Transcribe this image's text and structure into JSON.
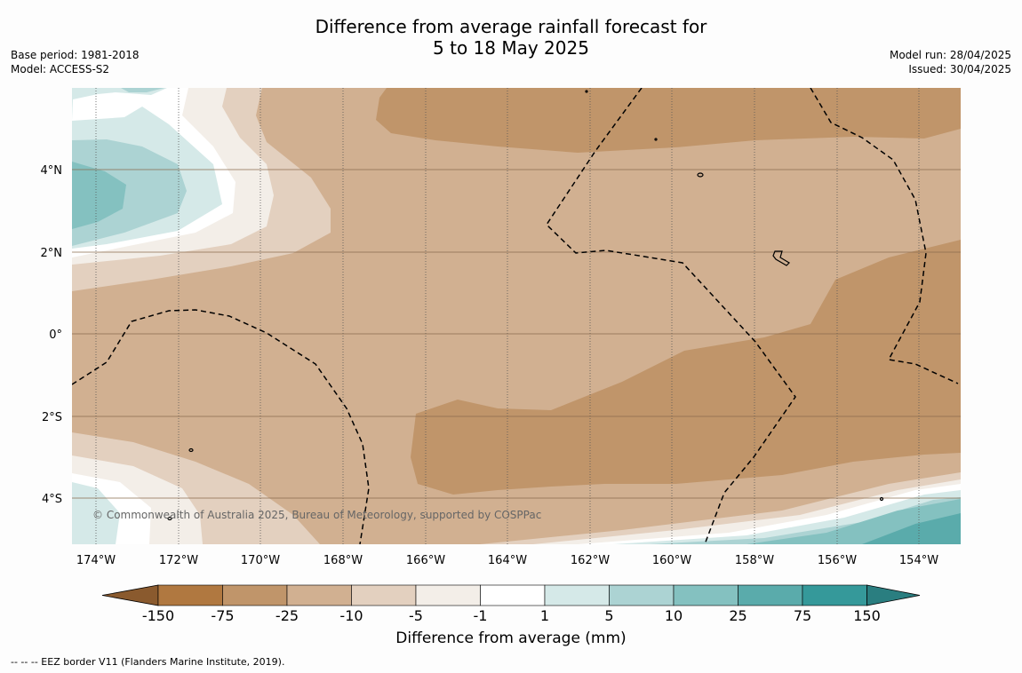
{
  "title": {
    "line1": "Difference from average rainfall forecast for",
    "line2": "5 to 18 May 2025"
  },
  "meta_left": {
    "base_period": "Base period: 1981-2018",
    "model": "Model: ACCESS-S2"
  },
  "meta_right": {
    "model_run": "Model run: 28/04/2025",
    "issued": "Issued: 30/04/2025"
  },
  "map": {
    "x_ticks": [
      "174°W",
      "172°W",
      "170°W",
      "168°W",
      "166°W",
      "164°W",
      "162°W",
      "160°W",
      "158°W",
      "156°W",
      "154°W"
    ],
    "y_ticks": [
      "4°N",
      "2°N",
      "0°",
      "2°S",
      "4°S"
    ],
    "copyright": "© Commonwealth of Australia 2025, Bureau of Meteorology, supported by COSPPac"
  },
  "colorbar": {
    "title": "Difference from average (mm)",
    "labels": [
      "-150",
      "-75",
      "-25",
      "-10",
      "-5",
      "-1",
      "1",
      "5",
      "10",
      "25",
      "75",
      "150"
    ],
    "colors": [
      "#b07840",
      "#c0956a",
      "#d1b091",
      "#e3d0bf",
      "#f3eee8",
      "#ffffff",
      "#d5e9e8",
      "#acd3d3",
      "#84c1c0",
      "#5aabab",
      "#35999a"
    ],
    "extend_low_color": "#8a5a2e",
    "extend_high_color": "#2a7e80"
  },
  "footer": {
    "eez_note": "--  --  -- EEZ border V11 (Flanders Marine Institute, 2019)."
  }
}
